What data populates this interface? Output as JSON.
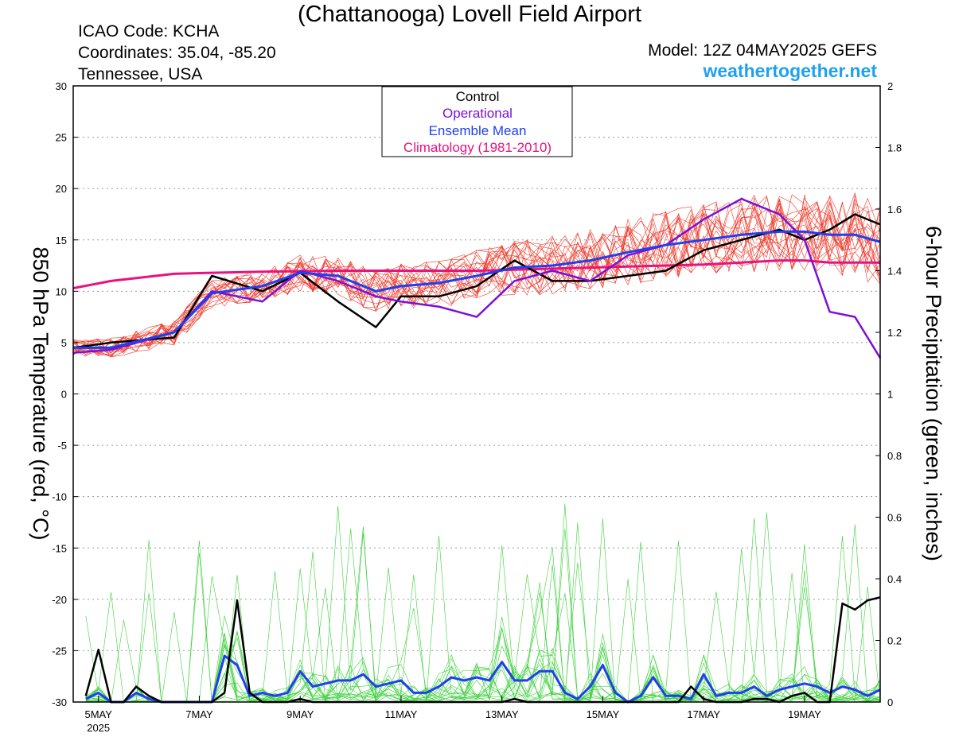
{
  "header": {
    "title": "(Chattanooga) Lovell Field Airport",
    "icao": "ICAO Code: KCHA",
    "coordinates": "Coordinates: 35.04, -85.20",
    "location": "Tennessee, USA",
    "model": "Model: 12Z 04MAY2025 GEFS",
    "website": "weathertogether.net"
  },
  "chart_data": {
    "type": "line",
    "title": "(Chattanooga) Lovell Field Airport",
    "ylabel_left": "850 hPa Temperature (red, °C)",
    "ylabel_right": "6-hour Precipitation (green, inches)",
    "ylim_left": [
      -30,
      30
    ],
    "ylim_right": [
      0,
      2
    ],
    "left_ticks": [
      30,
      25,
      20,
      15,
      10,
      5,
      0,
      -5,
      -10,
      -15,
      -20,
      -25,
      -30
    ],
    "right_ticks": [
      "2",
      "1.8",
      "1.6",
      "1.4",
      "1.2",
      "1",
      "0.8",
      "0.6",
      "0.4",
      "0.2",
      "0"
    ],
    "xlim_days": [
      4.5,
      20.5
    ],
    "x_ticks": [
      {
        "day": 5,
        "label": "5MAY"
      },
      {
        "day": 7,
        "label": "7MAY"
      },
      {
        "day": 9,
        "label": "9MAY"
      },
      {
        "day": 11,
        "label": "11MAY"
      },
      {
        "day": 13,
        "label": "13MAY"
      },
      {
        "day": 15,
        "label": "15MAY"
      },
      {
        "day": 17,
        "label": "17MAY"
      },
      {
        "day": 19,
        "label": "19MAY"
      }
    ],
    "x_year": "2025",
    "grid": true,
    "legend_position": "top-center",
    "legend": [
      {
        "name": "Control",
        "color": "#000000"
      },
      {
        "name": "Operational",
        "color": "#7a10d8"
      },
      {
        "name": "Ensemble Mean",
        "color": "#1f3ff0"
      },
      {
        "name": "Climatology (1981-2010)",
        "color": "#e8137e"
      }
    ],
    "colors": {
      "members_temp": "#ef3b2c",
      "members_precip": "#3bd23b",
      "control": "#000000",
      "operational": "#7a10d8",
      "mean": "#1f3ff0",
      "climatology": "#e8137e"
    },
    "temperature": {
      "x_days": [
        4.5,
        5.25,
        6.5,
        7.25,
        8.25,
        9.0,
        9.75,
        10.5,
        11.0,
        11.75,
        12.5,
        13.25,
        14.0,
        14.75,
        15.5,
        16.25,
        17.0,
        17.75,
        18.5,
        19.0,
        19.5,
        20.0,
        20.5
      ],
      "control": [
        4.5,
        5.0,
        5.5,
        11.5,
        10.0,
        11.8,
        9.0,
        6.5,
        9.5,
        9.5,
        10.5,
        13.0,
        11.0,
        11.0,
        11.5,
        12.0,
        14.0,
        15.0,
        16.0,
        15.0,
        16.0,
        17.5,
        16.5
      ],
      "operational": [
        4.0,
        4.3,
        6.0,
        10.0,
        9.0,
        12.0,
        11.0,
        9.5,
        9.0,
        8.5,
        7.5,
        11.0,
        12.0,
        11.0,
        13.5,
        14.5,
        17.0,
        19.0,
        17.5,
        15.0,
        8.0,
        7.5,
        3.5
      ],
      "ensemble_mean": [
        4.5,
        4.5,
        6.0,
        9.8,
        10.5,
        11.8,
        11.5,
        10.0,
        10.5,
        10.8,
        11.5,
        12.3,
        12.5,
        13.0,
        13.8,
        14.5,
        15.0,
        15.5,
        15.8,
        15.8,
        15.5,
        15.5,
        14.8
      ],
      "climatology": [
        10.3,
        11.0,
        11.7,
        11.8,
        11.9,
        11.95,
        12.0,
        12.0,
        12.0,
        12.0,
        12.0,
        12.1,
        12.2,
        12.3,
        12.4,
        12.5,
        12.6,
        12.8,
        13.0,
        13.0,
        12.8,
        12.8,
        12.8
      ]
    },
    "precipitation": {
      "x_days": [
        4.75,
        5.0,
        5.25,
        5.5,
        5.75,
        6.0,
        6.25,
        6.5,
        6.75,
        7.0,
        7.25,
        7.5,
        7.75,
        8.0,
        8.25,
        8.5,
        8.75,
        9.0,
        9.25,
        9.5,
        9.75,
        10.0,
        10.25,
        10.5,
        10.75,
        11.0,
        11.25,
        11.5,
        11.75,
        12.0,
        12.25,
        12.5,
        12.75,
        13.0,
        13.25,
        13.5,
        13.75,
        14.0,
        14.25,
        14.5,
        14.75,
        15.0,
        15.25,
        15.5,
        15.75,
        16.0,
        16.25,
        16.5,
        16.75,
        17.0,
        17.25,
        17.5,
        17.75,
        18.0,
        18.25,
        18.5,
        18.75,
        19.0,
        19.25,
        19.5,
        19.75,
        20.0,
        20.25,
        20.5
      ],
      "control": [
        0.02,
        0.17,
        0.0,
        0.0,
        0.05,
        0.02,
        0.0,
        0.0,
        0.0,
        0.0,
        0.0,
        0.03,
        0.33,
        0.03,
        0.0,
        0.0,
        0.0,
        0.01,
        0.0,
        0.0,
        0.0,
        0.0,
        0.0,
        0.0,
        0.0,
        0.0,
        0.0,
        0.0,
        0.0,
        0.0,
        0.0,
        0.0,
        0.0,
        0.0,
        0.01,
        0.0,
        0.0,
        0.0,
        0.0,
        0.0,
        0.0,
        0.0,
        0.0,
        0.0,
        0.0,
        0.0,
        0.0,
        0.0,
        0.05,
        0.01,
        0.0,
        0.0,
        0.0,
        0.01,
        0.01,
        0.0,
        0.02,
        0.03,
        0.0,
        0.0,
        0.32,
        0.3,
        0.33,
        0.34
      ],
      "ensemble_mean": [
        0.01,
        0.03,
        0.0,
        0.0,
        0.03,
        0.01,
        0.0,
        0.0,
        0.0,
        0.0,
        0.0,
        0.15,
        0.12,
        0.02,
        0.03,
        0.02,
        0.03,
        0.1,
        0.05,
        0.06,
        0.07,
        0.07,
        0.09,
        0.05,
        0.06,
        0.07,
        0.03,
        0.03,
        0.05,
        0.08,
        0.07,
        0.08,
        0.07,
        0.13,
        0.07,
        0.07,
        0.1,
        0.1,
        0.03,
        0.01,
        0.05,
        0.12,
        0.03,
        0.0,
        0.02,
        0.08,
        0.02,
        0.02,
        0.01,
        0.09,
        0.02,
        0.03,
        0.03,
        0.05,
        0.02,
        0.04,
        0.05,
        0.06,
        0.05,
        0.03,
        0.05,
        0.04,
        0.02,
        0.04
      ]
    }
  }
}
